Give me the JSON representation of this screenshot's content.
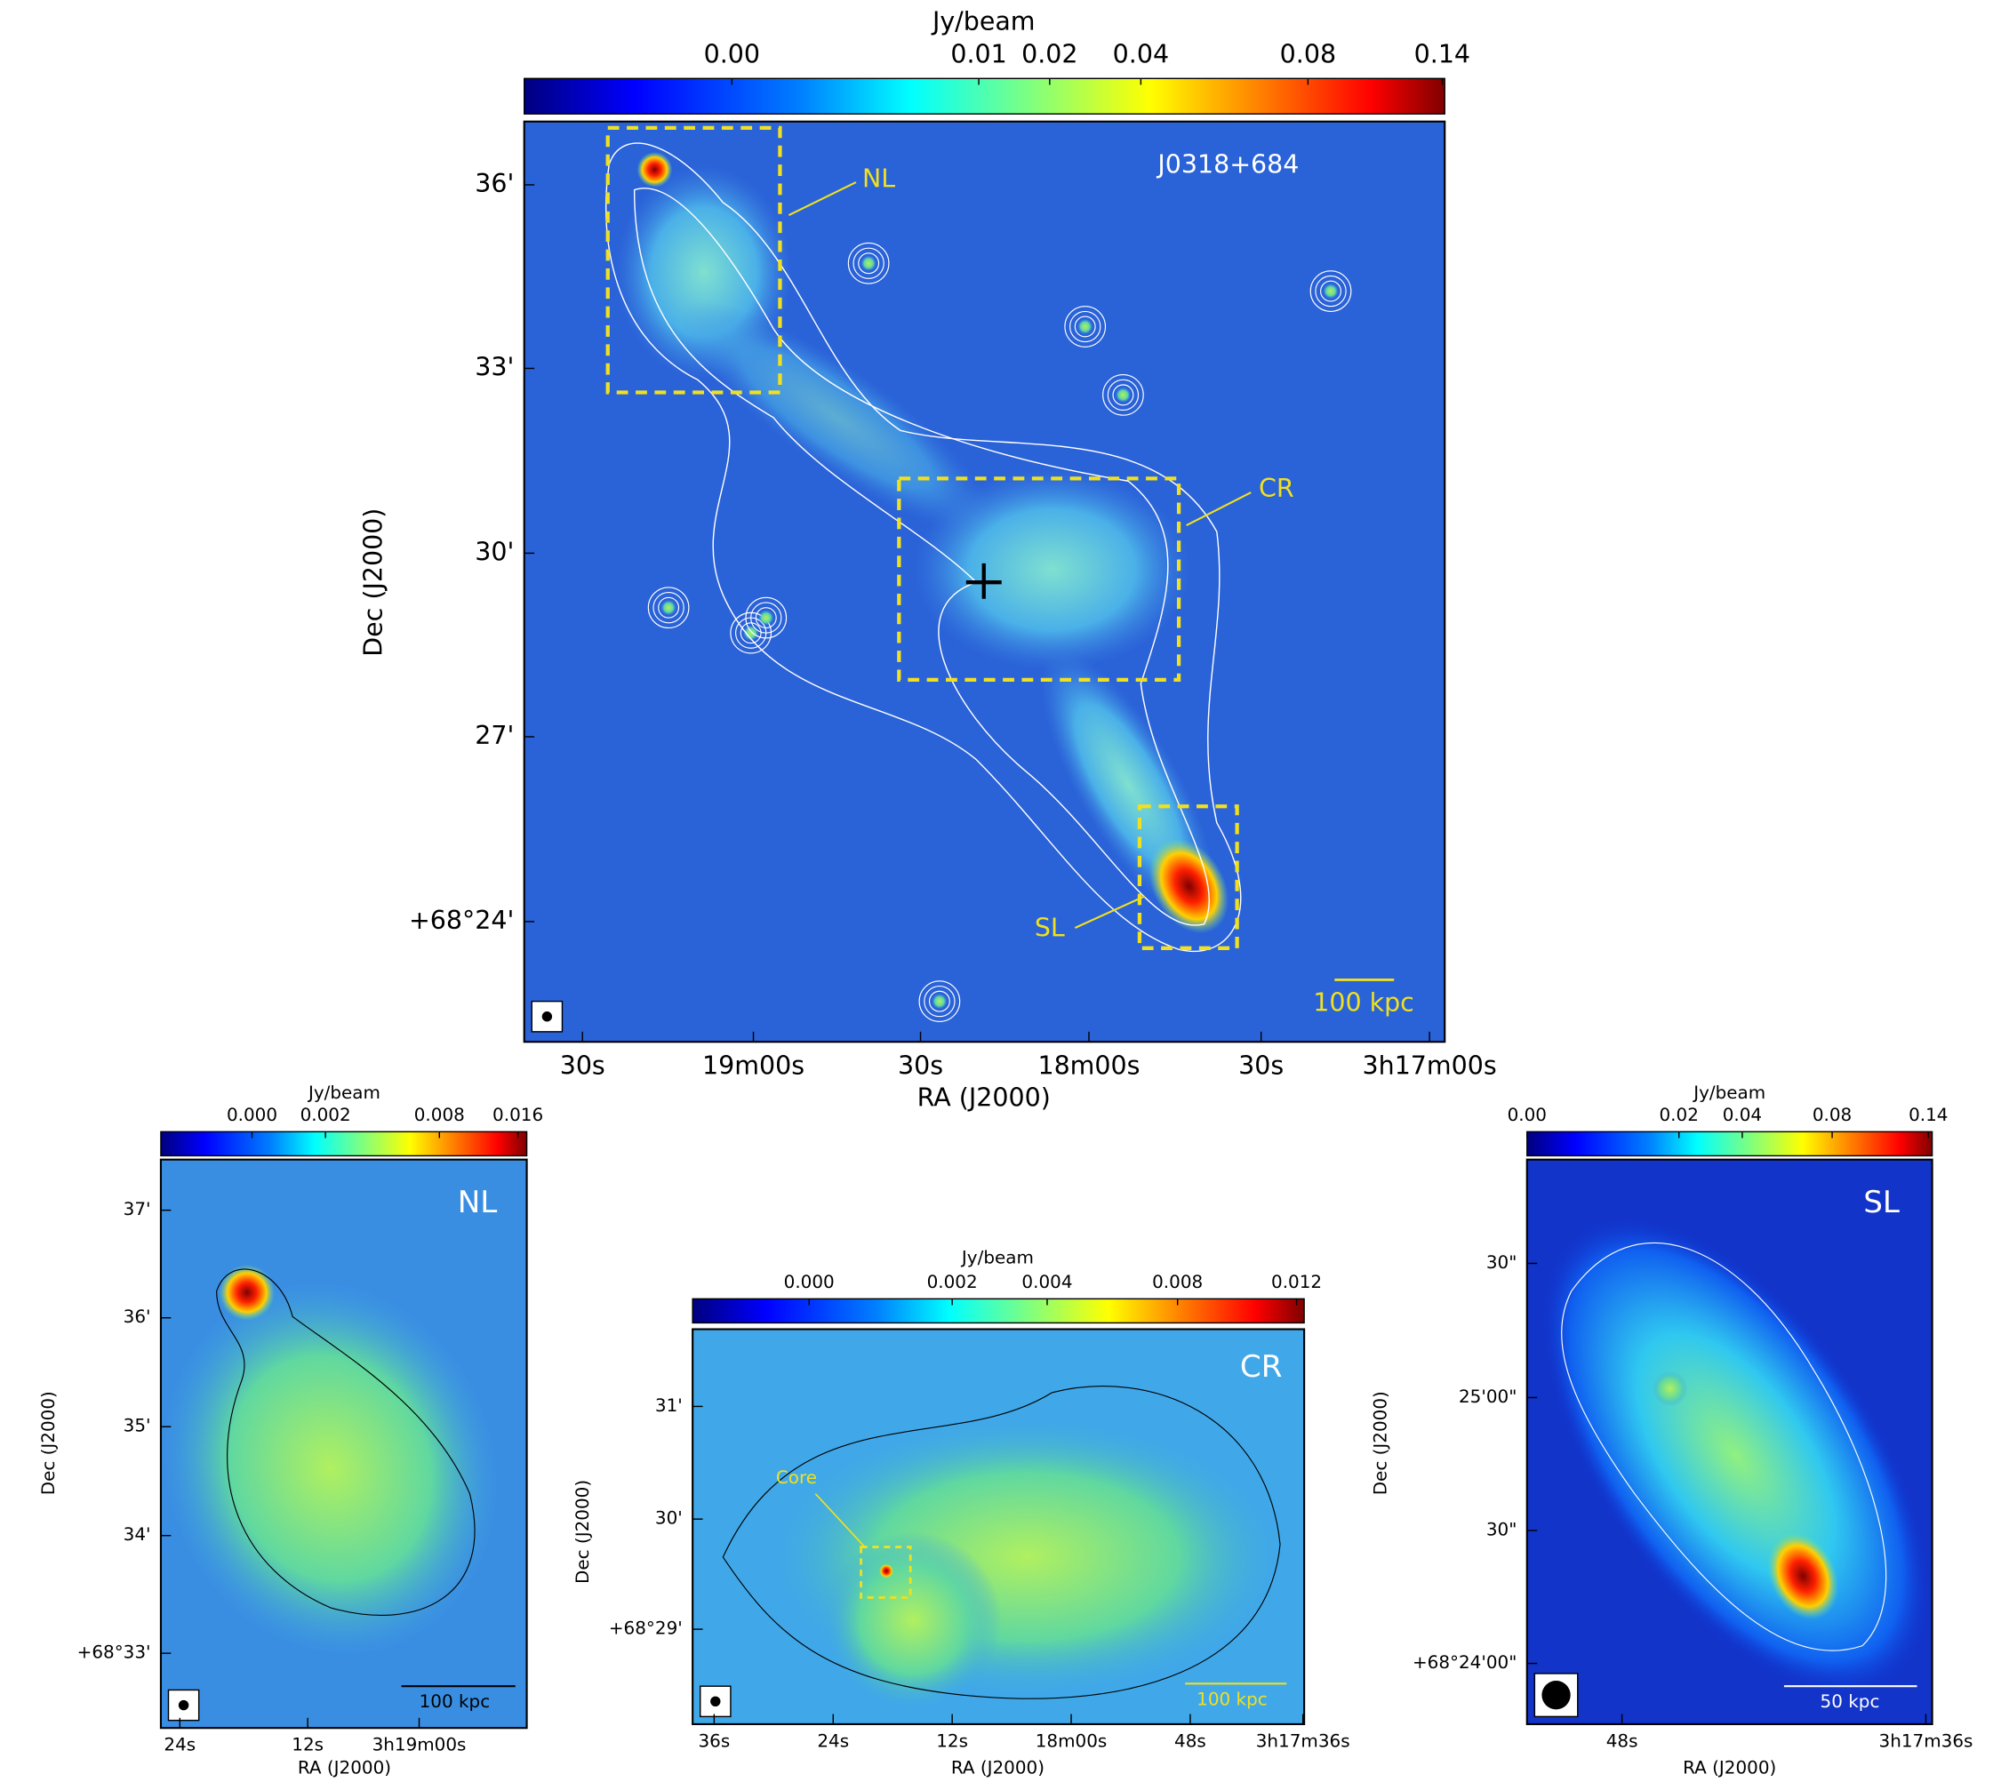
{
  "panels": [
    {
      "colorbar_label": "Jy/beam",
      "colorbar_ticks": [
        "0.00",
        "0.01",
        "0.02",
        "0.04",
        "0.08",
        "0.14"
      ],
      "yticks": [
        "36'",
        "33'",
        "30'",
        "27'",
        "+68°24'"
      ],
      "xticks": [
        "30s",
        "19m00s",
        "30s",
        "18m00s",
        "30s",
        "3h17m00s"
      ],
      "ylabel": "Dec (J2000)",
      "xlabel": "RA (J2000)",
      "title": "J0318+684",
      "annotations": [
        "NL",
        "CR",
        "SL"
      ],
      "scalebar": "100 kpc"
    },
    {
      "colorbar_label": "Jy/beam",
      "colorbar_ticks": [
        "0.000",
        "0.002",
        "0.008",
        "0.016"
      ],
      "yticks": [
        "37'",
        "36'",
        "35'",
        "34'",
        "+68°33'"
      ],
      "xticks": [
        "24s",
        "12s",
        "3h19m00s"
      ],
      "ylabel": "Dec (J2000)",
      "xlabel": "RA (J2000)",
      "title": "NL",
      "annotations": [],
      "scalebar": "100 kpc"
    },
    {
      "colorbar_label": "Jy/beam",
      "colorbar_ticks": [
        "0.000",
        "0.002",
        "0.004",
        "0.008",
        "0.012"
      ],
      "yticks": [
        "31'",
        "30'",
        "+68°29'"
      ],
      "xticks": [
        "36s",
        "24s",
        "12s",
        "18m00s",
        "48s",
        "3h17m36s"
      ],
      "ylabel": "Dec (J2000)",
      "xlabel": "RA (J2000)",
      "title": "CR",
      "annotations": [
        "Core"
      ],
      "scalebar": "100 kpc"
    },
    {
      "colorbar_label": "Jy/beam",
      "colorbar_ticks": [
        "0.00",
        "0.02",
        "0.04",
        "0.08",
        "0.14"
      ],
      "yticks": [
        "30\"",
        "25'00\"",
        "30\"",
        "+68°24'00\""
      ],
      "xticks": [
        "48s",
        "3h17m36s"
      ],
      "ylabel": "Dec (J2000)",
      "xlabel": "RA (J2000)",
      "title": "SL",
      "annotations": [],
      "scalebar": "50 kpc"
    }
  ]
}
